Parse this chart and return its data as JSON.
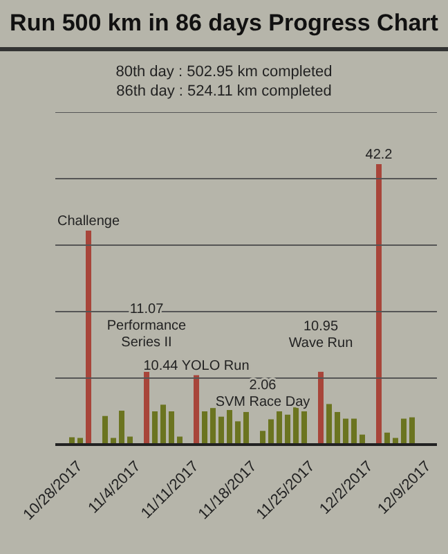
{
  "chart_data": {
    "type": "bar",
    "title": "Run 500 km in 86 days Progress Chart",
    "annotations": [
      "80th day : 502.95 km completed",
      "86th day : 524.11 km completed"
    ],
    "x": [
      "2017-10-27",
      "2017-10-28",
      "2017-10-29",
      "2017-10-31",
      "2017-11-01",
      "2017-11-02",
      "2017-11-03",
      "2017-11-05",
      "2017-11-06",
      "2017-11-07",
      "2017-11-08",
      "2017-11-09",
      "2017-11-11",
      "2017-11-12",
      "2017-11-13",
      "2017-11-14",
      "2017-11-15",
      "2017-11-16",
      "2017-11-17",
      "2017-11-19",
      "2017-11-20",
      "2017-11-21",
      "2017-11-22",
      "2017-11-23",
      "2017-11-24",
      "2017-11-26",
      "2017-11-27",
      "2017-11-28",
      "2017-11-29",
      "2017-11-30",
      "2017-12-01",
      "2017-12-03",
      "2017-12-04",
      "2017-12-05",
      "2017-12-06",
      "2017-12-07"
    ],
    "values": [
      1.1,
      1.0,
      32.2,
      4.3,
      1.0,
      5.1,
      1.2,
      11.07,
      5.0,
      6.0,
      5.0,
      1.2,
      10.44,
      5.0,
      5.5,
      4.2,
      5.2,
      3.5,
      4.9,
      2.06,
      3.8,
      5.0,
      4.5,
      5.6,
      5.0,
      10.95,
      6.1,
      4.9,
      3.9,
      3.9,
      1.5,
      42.2,
      1.8,
      1.0,
      3.9,
      4.1
    ],
    "value_labels": [
      null,
      null,
      "Challenge",
      null,
      null,
      null,
      null,
      "11.07\nPerformance Series II",
      null,
      null,
      null,
      null,
      "10.44 YOLO Run",
      null,
      null,
      null,
      null,
      null,
      null,
      "2.06\nSVM Race Day",
      null,
      null,
      null,
      null,
      null,
      "10.95\nWave Run",
      null,
      null,
      null,
      null,
      null,
      "42.2",
      null,
      null,
      null,
      null
    ],
    "colors": [
      "#6b7420",
      "#6b7420",
      "#a8453a",
      "#6b7420",
      "#6b7420",
      "#6b7420",
      "#6b7420",
      "#a8453a",
      "#6b7420",
      "#6b7420",
      "#6b7420",
      "#6b7420",
      "#a8453a",
      "#6b7420",
      "#6b7420",
      "#6b7420",
      "#6b7420",
      "#6b7420",
      "#6b7420",
      "#6b7420",
      "#6b7420",
      "#6b7420",
      "#6b7420",
      "#6b7420",
      "#6b7420",
      "#a8453a",
      "#6b7420",
      "#6b7420",
      "#6b7420",
      "#6b7420",
      "#6b7420",
      "#a8453a",
      "#6b7420",
      "#6b7420",
      "#6b7420",
      "#6b7420"
    ],
    "ylim": [
      0,
      50
    ],
    "yticks": [
      {
        "value": 0,
        "label": null
      },
      {
        "value": 10,
        "label": null
      },
      {
        "value": 20,
        "label": null
      },
      {
        "value": 30,
        "label": null
      },
      {
        "value": 40,
        "label": null
      },
      {
        "value": 50,
        "label": null
      }
    ],
    "tick_labels": "x",
    "grid": "y",
    "xlim": [
      "2017-10-25",
      "2017-12-10"
    ],
    "xticks": [
      {
        "value": "2017-10-28",
        "label": "10/28/2017"
      },
      {
        "value": "2017-11-04",
        "label": "11/4/2017"
      },
      {
        "value": "2017-11-11",
        "label": "11/11/2017"
      },
      {
        "value": "2017-11-18",
        "label": "11/18/2017"
      },
      {
        "value": "2017-11-25",
        "label": "11/25/2017"
      },
      {
        "value": "2017-12-02",
        "label": "12/2/2017"
      },
      {
        "value": "2017-12-09",
        "label": "12/9/2017"
      }
    ]
  }
}
